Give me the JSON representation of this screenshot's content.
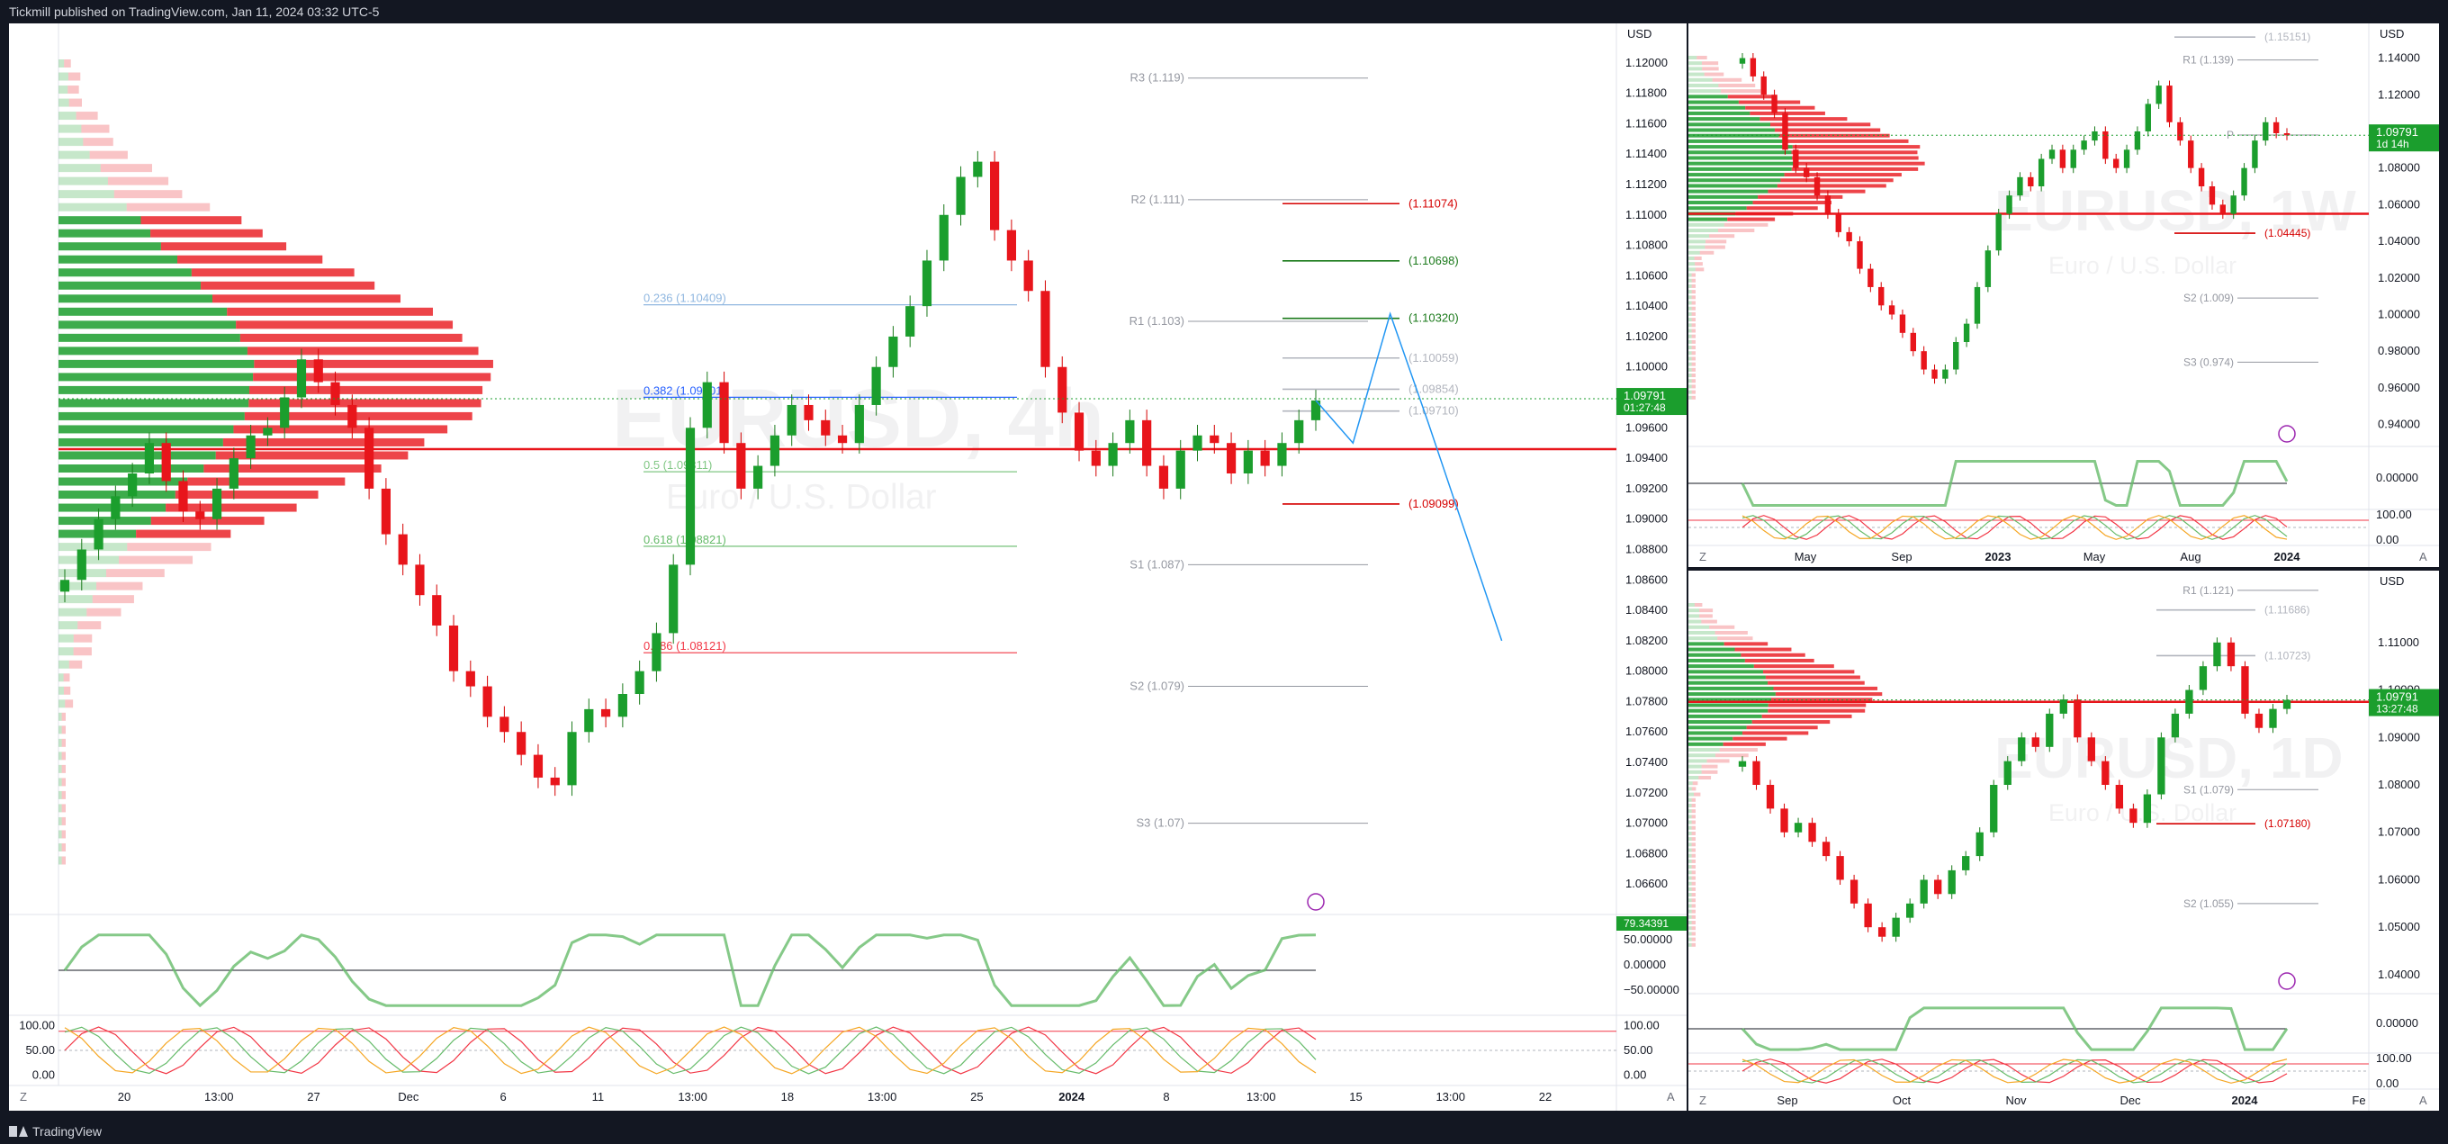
{
  "header": {
    "published_text": "Tickmill published on TradingView.com, Jan 11, 2024 03:32 UTC-5"
  },
  "footer": {
    "brand": "TradingView"
  },
  "colors": {
    "up": "#089981",
    "down": "#f23645",
    "green_fill": "#1b9e2d",
    "red_fill": "#e8151b",
    "accent_blue": "#2962ff",
    "orange": "#f5a623",
    "purple": "#9c27b0"
  },
  "chart_data": [
    {
      "type": "line",
      "symbol": "EURUSD, 4h",
      "subtitle": "Euro / U.S. Dollar",
      "currency": "USD",
      "ylim": [
        1.064,
        1.122
      ],
      "y_ticks": [
        "1.12000",
        "1.11800",
        "1.11600",
        "1.11400",
        "1.11200",
        "1.11000",
        "1.10800",
        "1.10600",
        "1.10400",
        "1.10200",
        "1.10000",
        "1.09800",
        "1.09600",
        "1.09400",
        "1.09200",
        "1.09000",
        "1.08800",
        "1.08600",
        "1.08400",
        "1.08200",
        "1.08000",
        "1.07800",
        "1.07600",
        "1.07400",
        "1.07200",
        "1.07000",
        "1.06800",
        "1.06600"
      ],
      "x_ticks": [
        "20",
        "13:00",
        "27",
        "Dec",
        "6",
        "11",
        "13:00",
        "18",
        "13:00",
        "25",
        "2024",
        "8",
        "13:00",
        "15",
        "13:00",
        "22"
      ],
      "last_price": "1.09791",
      "countdown": "01:27:48",
      "price_series": [
        1.086,
        1.088,
        1.09,
        1.0915,
        1.093,
        1.095,
        1.0925,
        1.0905,
        1.09,
        1.092,
        1.094,
        1.0955,
        1.096,
        1.098,
        1.1005,
        1.099,
        1.0975,
        1.096,
        1.092,
        1.089,
        1.087,
        1.085,
        1.083,
        1.08,
        1.079,
        1.077,
        1.076,
        1.0745,
        1.073,
        1.0725,
        1.076,
        1.0775,
        1.077,
        1.0785,
        1.08,
        1.0825,
        1.087,
        1.096,
        1.099,
        1.095,
        1.092,
        1.0935,
        1.0955,
        1.0975,
        1.0965,
        1.0955,
        1.095,
        1.0975,
        1.1,
        1.102,
        1.104,
        1.107,
        1.11,
        1.1125,
        1.1135,
        1.109,
        1.107,
        1.105,
        1.1,
        1.097,
        1.0945,
        1.0935,
        1.095,
        1.0965,
        1.0935,
        1.092,
        1.0945,
        1.0955,
        1.095,
        1.093,
        1.0945,
        1.0935,
        1.095,
        1.0965,
        1.0978
      ],
      "projection": [
        [
          1.0978,
          0
        ],
        [
          1.095,
          1
        ],
        [
          1.1035,
          2
        ],
        [
          1.0965,
          3
        ],
        [
          1.082,
          5
        ]
      ],
      "pivots": [
        {
          "label": "R3 (1.119)",
          "value": 1.119
        },
        {
          "label": "R2 (1.111)",
          "value": 1.111
        },
        {
          "label": "R1 (1.103)",
          "value": 1.103
        },
        {
          "label": "S1 (1.087)",
          "value": 1.087
        },
        {
          "label": "S2 (1.079)",
          "value": 1.079
        },
        {
          "label": "S3 (1.07)",
          "value": 1.07
        }
      ],
      "fib_levels": [
        {
          "label": "0.236 (1.10409)",
          "value": 1.10409
        },
        {
          "label": "0.382 (1.09801)",
          "value": 1.09801
        },
        {
          "label": "0.5 (1.09311)",
          "value": 1.09311
        },
        {
          "label": "0.618 (1.08821)",
          "value": 1.08821
        },
        {
          "label": "0.786 (1.08121)",
          "value": 1.08121
        }
      ],
      "levels": [
        {
          "label": "(1.11074)",
          "value": 1.11074,
          "color": "red"
        },
        {
          "label": "(1.10698)",
          "value": 1.10698,
          "color": "green"
        },
        {
          "label": "(1.10320)",
          "value": 1.1032,
          "color": "green"
        },
        {
          "label": "(1.10059)",
          "value": 1.10059,
          "color": "gray"
        },
        {
          "label": "(1.09854)",
          "value": 1.09854,
          "color": "gray"
        },
        {
          "label": "(1.09710)",
          "value": 1.0971,
          "color": "gray"
        },
        {
          "label": "(1.09099)",
          "value": 1.09099,
          "color": "red"
        }
      ],
      "oscillator_1": {
        "value_label": "79.34391",
        "ticks": [
          "50.00000",
          "0.00000",
          "−50.00000"
        ]
      },
      "oscillator_2": {
        "ticks_left": [
          "100.00",
          "50.00",
          "0.00"
        ],
        "ticks_right": [
          "100.00",
          "50.00",
          "0.00"
        ]
      }
    },
    {
      "type": "line",
      "symbol": "EURUSD, 1W",
      "subtitle": "Euro / U.S. Dollar",
      "currency": "USD",
      "ylim": [
        0.928,
        1.156
      ],
      "y_ticks": [
        "1.14000",
        "1.12000",
        "1.10000",
        "1.08000",
        "1.06000",
        "1.04000",
        "1.02000",
        "1.00000",
        "0.98000",
        "0.96000",
        "0.94000"
      ],
      "x_ticks": [
        "May",
        "Sep",
        "2023",
        "May",
        "Aug",
        "2024"
      ],
      "last_price": "1.09791",
      "countdown": "1d 14h",
      "price_series": [
        1.14,
        1.13,
        1.12,
        1.11,
        1.09,
        1.08,
        1.075,
        1.065,
        1.055,
        1.045,
        1.04,
        1.025,
        1.015,
        1.005,
        1.0,
        0.99,
        0.98,
        0.97,
        0.965,
        0.97,
        0.985,
        0.995,
        1.015,
        1.035,
        1.055,
        1.065,
        1.075,
        1.07,
        1.085,
        1.09,
        1.08,
        1.09,
        1.095,
        1.1,
        1.085,
        1.08,
        1.09,
        1.1,
        1.115,
        1.125,
        1.105,
        1.095,
        1.08,
        1.07,
        1.06,
        1.055,
        1.065,
        1.08,
        1.095,
        1.105,
        1.099,
        1.0979
      ],
      "pivots": [
        {
          "label": "R1 (1.139)",
          "value": 1.139
        },
        {
          "label": "P",
          "value": 1.098
        },
        {
          "label": "S2 (1.009)",
          "value": 1.009
        },
        {
          "label": "S3 (0.974)",
          "value": 0.974
        }
      ],
      "levels": [
        {
          "label": "(1.15151)",
          "value": 1.15151,
          "color": "gray"
        },
        {
          "label": "(1.04445)",
          "value": 1.04445,
          "color": "red"
        }
      ],
      "oscillator_1": {
        "ticks": [
          "0.00000"
        ]
      },
      "oscillator_2": {
        "ticks_left": [
          "100.00",
          "0.00"
        ],
        "ticks_right": [
          "100.00",
          "0.00"
        ]
      }
    },
    {
      "type": "line",
      "symbol": "EURUSD, 1D",
      "subtitle": "Euro / U.S. Dollar",
      "currency": "USD",
      "ylim": [
        1.036,
        1.124
      ],
      "y_ticks": [
        "1.11000",
        "1.10000",
        "1.09000",
        "1.08000",
        "1.07000",
        "1.06000",
        "1.05000",
        "1.04000"
      ],
      "x_ticks": [
        "Sep",
        "Oct",
        "Nov",
        "Dec",
        "2024",
        "Fe"
      ],
      "last_price": "1.09791",
      "countdown": "13:27:48",
      "price_series": [
        1.085,
        1.08,
        1.075,
        1.07,
        1.072,
        1.068,
        1.065,
        1.06,
        1.055,
        1.05,
        1.048,
        1.052,
        1.055,
        1.06,
        1.057,
        1.062,
        1.065,
        1.07,
        1.08,
        1.085,
        1.09,
        1.088,
        1.095,
        1.098,
        1.09,
        1.085,
        1.08,
        1.075,
        1.072,
        1.078,
        1.09,
        1.095,
        1.1,
        1.105,
        1.11,
        1.105,
        1.095,
        1.092,
        1.096,
        1.0979
      ],
      "pivots": [
        {
          "label": "R1 (1.121)",
          "value": 1.121
        },
        {
          "label": "S1 (1.079)",
          "value": 1.079
        },
        {
          "label": "S2 (1.055)",
          "value": 1.055
        }
      ],
      "levels": [
        {
          "label": "(1.11686)",
          "value": 1.11686,
          "color": "gray"
        },
        {
          "label": "(1.10723)",
          "value": 1.10723,
          "color": "gray"
        },
        {
          "label": "(1.07180)",
          "value": 1.0718,
          "color": "red"
        }
      ],
      "oscillator_1": {
        "ticks": [
          "0.00000"
        ]
      },
      "oscillator_2": {
        "ticks_left": [
          "100.00",
          "0.00"
        ],
        "ticks_right": [
          "100.00",
          "0.00"
        ]
      }
    }
  ]
}
